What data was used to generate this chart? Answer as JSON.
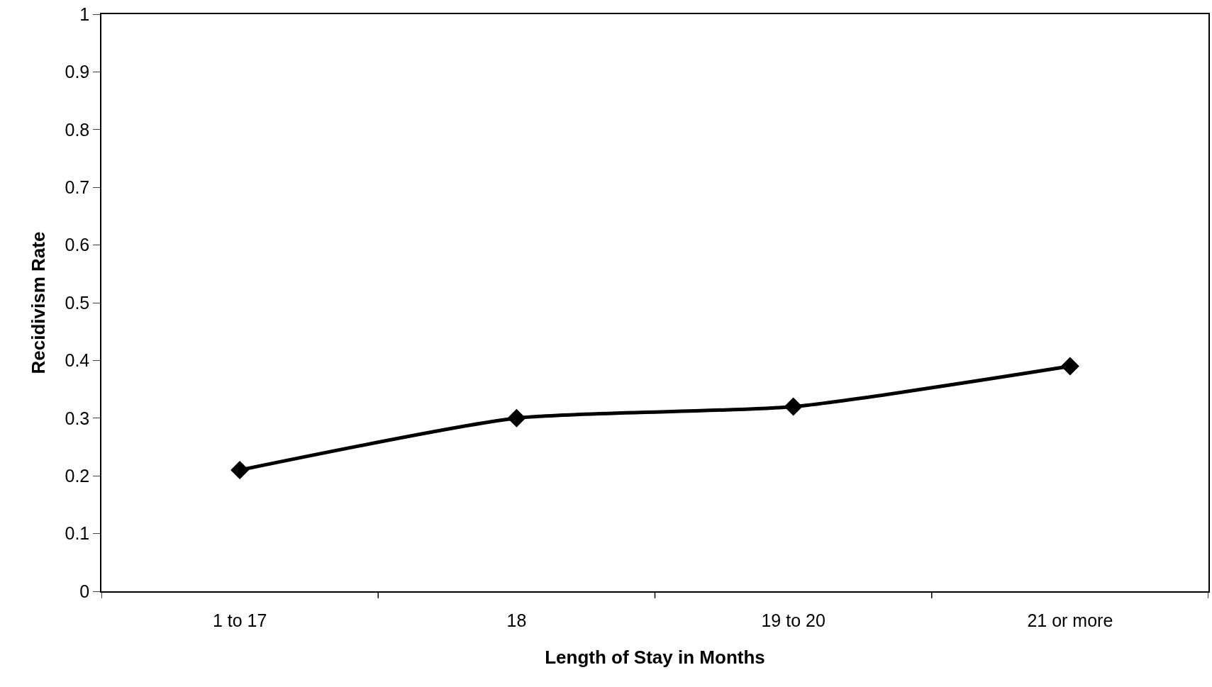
{
  "chart_data": {
    "type": "line",
    "xlabel": "Length of Stay in Months",
    "ylabel": "Recidivism Rate",
    "categories": [
      "1 to 17",
      "18",
      "19 to 20",
      "21 or more"
    ],
    "series": [
      {
        "color": "#000000",
        "values": [
          0.21,
          0.3,
          0.32,
          0.39
        ]
      }
    ],
    "ylim": [
      0,
      1
    ],
    "yticks": [
      0,
      0.1,
      0.2,
      0.3,
      0.4,
      0.5,
      0.6,
      0.7,
      0.8,
      0.9,
      1
    ],
    "marker": "diamond",
    "line_style": "solid"
  }
}
